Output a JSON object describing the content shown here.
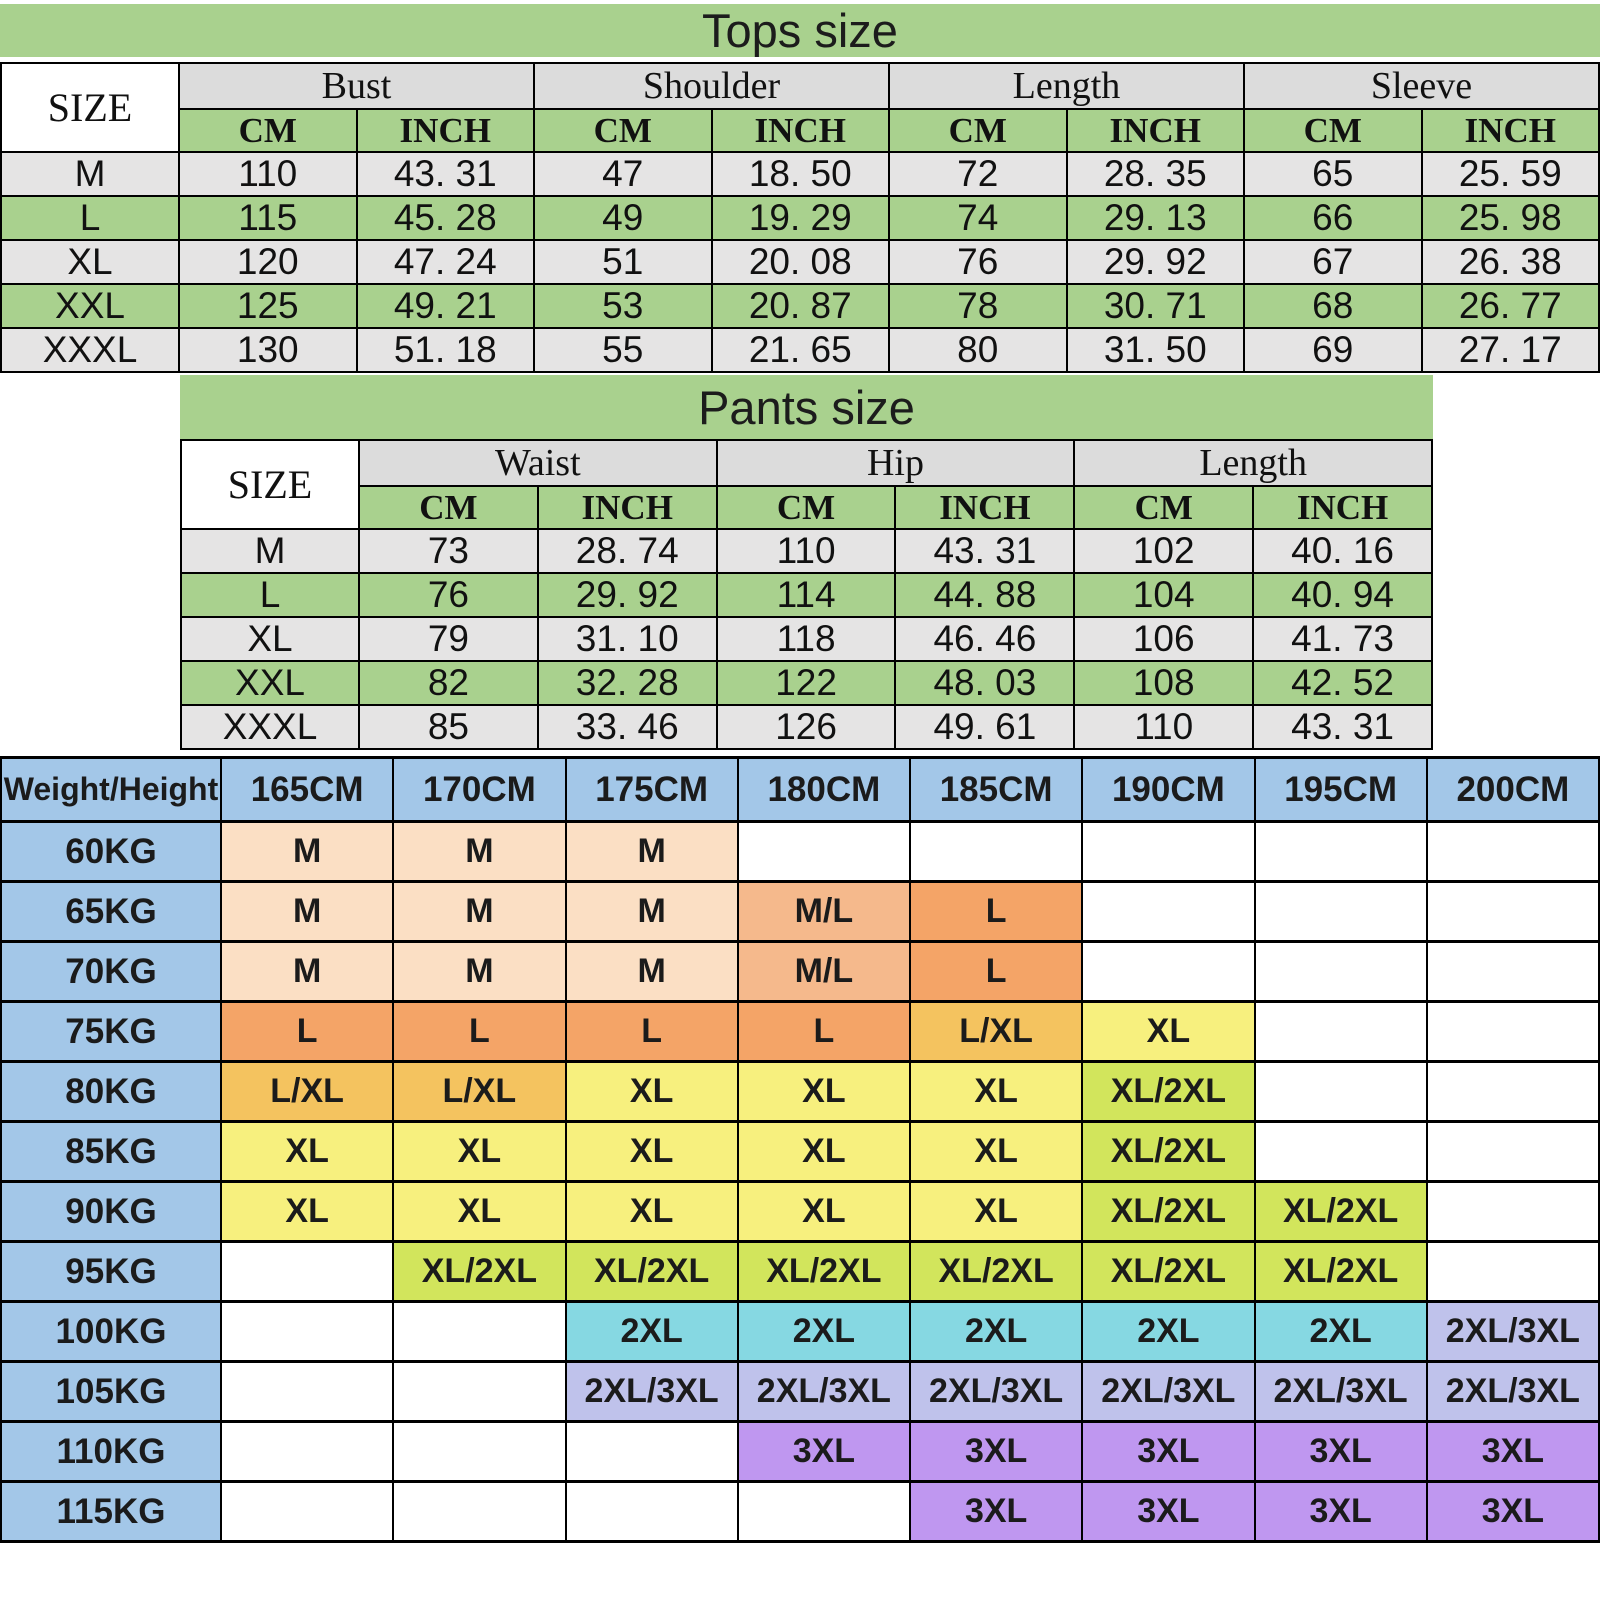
{
  "page": {
    "background": "#ffffff"
  },
  "colors": {
    "green": "#a9d18e",
    "header_gray": "#dcdcdc",
    "row_gray": "#e5e4e4",
    "white": "#ffffff",
    "blue": "#a3c7e8",
    "peach": "#fbdfc4",
    "ml_orange": "#f5b98c",
    "l_orange": "#f4a467",
    "lxl_amber": "#f4c35f",
    "xl_yellow": "#f7f07e",
    "xl2xl_chartreuse": "#d2e55c",
    "c2xl_cyan": "#86d8e2",
    "c2xl3xl_periwinkle": "#bfc2eb",
    "c3xl_purple": "#bf97f0",
    "border_black": "#000000"
  },
  "tops": {
    "title": "Tops size",
    "corner_label": "SIZE",
    "groups": [
      {
        "label": "Bust"
      },
      {
        "label": "Shoulder"
      },
      {
        "label": "Length"
      },
      {
        "label": "Sleeve"
      }
    ],
    "unit_labels": [
      "CM",
      "INCH"
    ],
    "rows": [
      {
        "size": "M",
        "tone": "row_gray",
        "values": [
          "110",
          "43. 31",
          "47",
          "18. 50",
          "72",
          "28. 35",
          "65",
          "25. 59"
        ]
      },
      {
        "size": "L",
        "tone": "green",
        "values": [
          "115",
          "45. 28",
          "49",
          "19. 29",
          "74",
          "29. 13",
          "66",
          "25. 98"
        ]
      },
      {
        "size": "XL",
        "tone": "row_gray",
        "values": [
          "120",
          "47. 24",
          "51",
          "20. 08",
          "76",
          "29. 92",
          "67",
          "26. 38"
        ]
      },
      {
        "size": "XXL",
        "tone": "green",
        "values": [
          "125",
          "49. 21",
          "53",
          "20. 87",
          "78",
          "30. 71",
          "68",
          "26. 77"
        ]
      },
      {
        "size": "XXXL",
        "tone": "row_gray",
        "values": [
          "130",
          "51. 18",
          "55",
          "21. 65",
          "80",
          "31. 50",
          "69",
          "27. 17"
        ]
      }
    ]
  },
  "pants": {
    "title": "Pants size",
    "corner_label": "SIZE",
    "groups": [
      {
        "label": "Waist"
      },
      {
        "label": "Hip"
      },
      {
        "label": "Length"
      }
    ],
    "unit_labels": [
      "CM",
      "INCH"
    ],
    "rows": [
      {
        "size": "M",
        "tone": "row_gray",
        "values": [
          "73",
          "28. 74",
          "110",
          "43. 31",
          "102",
          "40. 16"
        ]
      },
      {
        "size": "L",
        "tone": "green",
        "values": [
          "76",
          "29. 92",
          "114",
          "44. 88",
          "104",
          "40. 94"
        ]
      },
      {
        "size": "XL",
        "tone": "row_gray",
        "values": [
          "79",
          "31. 10",
          "118",
          "46. 46",
          "106",
          "41. 73"
        ]
      },
      {
        "size": "XXL",
        "tone": "green",
        "values": [
          "82",
          "32. 28",
          "122",
          "48. 03",
          "108",
          "42. 52"
        ]
      },
      {
        "size": "XXXL",
        "tone": "row_gray",
        "values": [
          "85",
          "33. 46",
          "126",
          "49. 61",
          "110",
          "43. 31"
        ]
      }
    ]
  },
  "matrix": {
    "corner_label": "Weight/Height",
    "height_headers": [
      "165CM",
      "170CM",
      "175CM",
      "180CM",
      "185CM",
      "190CM",
      "195CM",
      "200CM"
    ],
    "rows": [
      {
        "weight": "60KG",
        "cells": [
          {
            "v": "M",
            "c": "peach"
          },
          {
            "v": "M",
            "c": "peach"
          },
          {
            "v": "M",
            "c": "peach"
          },
          {
            "v": "",
            "c": "white"
          },
          {
            "v": "",
            "c": "white"
          },
          {
            "v": "",
            "c": "white"
          },
          {
            "v": "",
            "c": "white"
          },
          {
            "v": "",
            "c": "white"
          }
        ]
      },
      {
        "weight": "65KG",
        "cells": [
          {
            "v": "M",
            "c": "peach"
          },
          {
            "v": "M",
            "c": "peach"
          },
          {
            "v": "M",
            "c": "peach"
          },
          {
            "v": "M/L",
            "c": "ml_orange"
          },
          {
            "v": "L",
            "c": "l_orange"
          },
          {
            "v": "",
            "c": "white"
          },
          {
            "v": "",
            "c": "white"
          },
          {
            "v": "",
            "c": "white"
          }
        ]
      },
      {
        "weight": "70KG",
        "cells": [
          {
            "v": "M",
            "c": "peach"
          },
          {
            "v": "M",
            "c": "peach"
          },
          {
            "v": "M",
            "c": "peach"
          },
          {
            "v": "M/L",
            "c": "ml_orange"
          },
          {
            "v": "L",
            "c": "l_orange"
          },
          {
            "v": "",
            "c": "white"
          },
          {
            "v": "",
            "c": "white"
          },
          {
            "v": "",
            "c": "white"
          }
        ]
      },
      {
        "weight": "75KG",
        "cells": [
          {
            "v": "L",
            "c": "l_orange"
          },
          {
            "v": "L",
            "c": "l_orange"
          },
          {
            "v": "L",
            "c": "l_orange"
          },
          {
            "v": "L",
            "c": "l_orange"
          },
          {
            "v": "L/XL",
            "c": "lxl_amber"
          },
          {
            "v": "XL",
            "c": "xl_yellow"
          },
          {
            "v": "",
            "c": "white"
          },
          {
            "v": "",
            "c": "white"
          }
        ]
      },
      {
        "weight": "80KG",
        "cells": [
          {
            "v": "L/XL",
            "c": "lxl_amber"
          },
          {
            "v": "L/XL",
            "c": "lxl_amber"
          },
          {
            "v": "XL",
            "c": "xl_yellow"
          },
          {
            "v": "XL",
            "c": "xl_yellow"
          },
          {
            "v": "XL",
            "c": "xl_yellow"
          },
          {
            "v": "XL/2XL",
            "c": "xl2xl_chartreuse"
          },
          {
            "v": "",
            "c": "white"
          },
          {
            "v": "",
            "c": "white"
          }
        ]
      },
      {
        "weight": "85KG",
        "cells": [
          {
            "v": "XL",
            "c": "xl_yellow"
          },
          {
            "v": "XL",
            "c": "xl_yellow"
          },
          {
            "v": "XL",
            "c": "xl_yellow"
          },
          {
            "v": "XL",
            "c": "xl_yellow"
          },
          {
            "v": "XL",
            "c": "xl_yellow"
          },
          {
            "v": "XL/2XL",
            "c": "xl2xl_chartreuse"
          },
          {
            "v": "",
            "c": "white"
          },
          {
            "v": "",
            "c": "white"
          }
        ]
      },
      {
        "weight": "90KG",
        "cells": [
          {
            "v": "XL",
            "c": "xl_yellow"
          },
          {
            "v": "XL",
            "c": "xl_yellow"
          },
          {
            "v": "XL",
            "c": "xl_yellow"
          },
          {
            "v": "XL",
            "c": "xl_yellow"
          },
          {
            "v": "XL",
            "c": "xl_yellow"
          },
          {
            "v": "XL/2XL",
            "c": "xl2xl_chartreuse"
          },
          {
            "v": "XL/2XL",
            "c": "xl2xl_chartreuse"
          },
          {
            "v": "",
            "c": "white"
          }
        ]
      },
      {
        "weight": "95KG",
        "cells": [
          {
            "v": "",
            "c": "white"
          },
          {
            "v": "XL/2XL",
            "c": "xl2xl_chartreuse"
          },
          {
            "v": "XL/2XL",
            "c": "xl2xl_chartreuse"
          },
          {
            "v": "XL/2XL",
            "c": "xl2xl_chartreuse"
          },
          {
            "v": "XL/2XL",
            "c": "xl2xl_chartreuse"
          },
          {
            "v": "XL/2XL",
            "c": "xl2xl_chartreuse"
          },
          {
            "v": "XL/2XL",
            "c": "xl2xl_chartreuse"
          },
          {
            "v": "",
            "c": "white"
          }
        ]
      },
      {
        "weight": "100KG",
        "cells": [
          {
            "v": "",
            "c": "white"
          },
          {
            "v": "",
            "c": "white"
          },
          {
            "v": "2XL",
            "c": "c2xl_cyan"
          },
          {
            "v": "2XL",
            "c": "c2xl_cyan"
          },
          {
            "v": "2XL",
            "c": "c2xl_cyan"
          },
          {
            "v": "2XL",
            "c": "c2xl_cyan"
          },
          {
            "v": "2XL",
            "c": "c2xl_cyan"
          },
          {
            "v": "2XL/3XL",
            "c": "c2xl3xl_periwinkle"
          }
        ]
      },
      {
        "weight": "105KG",
        "cells": [
          {
            "v": "",
            "c": "white"
          },
          {
            "v": "",
            "c": "white"
          },
          {
            "v": "2XL/3XL",
            "c": "c2xl3xl_periwinkle"
          },
          {
            "v": "2XL/3XL",
            "c": "c2xl3xl_periwinkle"
          },
          {
            "v": "2XL/3XL",
            "c": "c2xl3xl_periwinkle"
          },
          {
            "v": "2XL/3XL",
            "c": "c2xl3xl_periwinkle"
          },
          {
            "v": "2XL/3XL",
            "c": "c2xl3xl_periwinkle"
          },
          {
            "v": "2XL/3XL",
            "c": "c2xl3xl_periwinkle"
          }
        ]
      },
      {
        "weight": "110KG",
        "cells": [
          {
            "v": "",
            "c": "white"
          },
          {
            "v": "",
            "c": "white"
          },
          {
            "v": "",
            "c": "white"
          },
          {
            "v": "3XL",
            "c": "c3xl_purple"
          },
          {
            "v": "3XL",
            "c": "c3xl_purple"
          },
          {
            "v": "3XL",
            "c": "c3xl_purple"
          },
          {
            "v": "3XL",
            "c": "c3xl_purple"
          },
          {
            "v": "3XL",
            "c": "c3xl_purple"
          }
        ]
      },
      {
        "weight": "115KG",
        "cells": [
          {
            "v": "",
            "c": "white"
          },
          {
            "v": "",
            "c": "white"
          },
          {
            "v": "",
            "c": "white"
          },
          {
            "v": "",
            "c": "white"
          },
          {
            "v": "3XL",
            "c": "c3xl_purple"
          },
          {
            "v": "3XL",
            "c": "c3xl_purple"
          },
          {
            "v": "3XL",
            "c": "c3xl_purple"
          },
          {
            "v": "3XL",
            "c": "c3xl_purple"
          }
        ]
      }
    ]
  },
  "chart_data": [
    {
      "type": "table",
      "title": "Tops size",
      "columns": [
        "SIZE",
        "Bust CM",
        "Bust INCH",
        "Shoulder CM",
        "Shoulder INCH",
        "Length CM",
        "Length INCH",
        "Sleeve CM",
        "Sleeve INCH"
      ],
      "rows": [
        [
          "M",
          110,
          43.31,
          47,
          18.5,
          72,
          28.35,
          65,
          25.59
        ],
        [
          "L",
          115,
          45.28,
          49,
          19.29,
          74,
          29.13,
          66,
          25.98
        ],
        [
          "XL",
          120,
          47.24,
          51,
          20.08,
          76,
          29.92,
          67,
          26.38
        ],
        [
          "XXL",
          125,
          49.21,
          53,
          20.87,
          78,
          30.71,
          68,
          26.77
        ],
        [
          "XXXL",
          130,
          51.18,
          55,
          21.65,
          80,
          31.5,
          69,
          27.17
        ]
      ]
    },
    {
      "type": "table",
      "title": "Pants size",
      "columns": [
        "SIZE",
        "Waist CM",
        "Waist INCH",
        "Hip CM",
        "Hip INCH",
        "Length CM",
        "Length INCH"
      ],
      "rows": [
        [
          "M",
          73,
          28.74,
          110,
          43.31,
          102,
          40.16
        ],
        [
          "L",
          76,
          29.92,
          114,
          44.88,
          104,
          40.94
        ],
        [
          "XL",
          79,
          31.1,
          118,
          46.46,
          106,
          41.73
        ],
        [
          "XXL",
          82,
          32.28,
          122,
          48.03,
          108,
          42.52
        ],
        [
          "XXXL",
          85,
          33.46,
          126,
          49.61,
          110,
          43.31
        ]
      ]
    },
    {
      "type": "table",
      "title": "Weight/Height size recommendation matrix",
      "columns": [
        "Weight/Height",
        "165CM",
        "170CM",
        "175CM",
        "180CM",
        "185CM",
        "190CM",
        "195CM",
        "200CM"
      ],
      "rows": [
        [
          "60KG",
          "M",
          "M",
          "M",
          "",
          "",
          "",
          "",
          ""
        ],
        [
          "65KG",
          "M",
          "M",
          "M",
          "M/L",
          "L",
          "",
          "",
          ""
        ],
        [
          "70KG",
          "M",
          "M",
          "M",
          "M/L",
          "L",
          "",
          "",
          ""
        ],
        [
          "75KG",
          "L",
          "L",
          "L",
          "L",
          "L/XL",
          "XL",
          "",
          ""
        ],
        [
          "80KG",
          "L/XL",
          "L/XL",
          "XL",
          "XL",
          "XL",
          "XL/2XL",
          "",
          ""
        ],
        [
          "85KG",
          "XL",
          "XL",
          "XL",
          "XL",
          "XL",
          "XL/2XL",
          "",
          ""
        ],
        [
          "90KG",
          "XL",
          "XL",
          "XL",
          "XL",
          "XL",
          "XL/2XL",
          "XL/2XL",
          ""
        ],
        [
          "95KG",
          "",
          "XL/2XL",
          "XL/2XL",
          "XL/2XL",
          "XL/2XL",
          "XL/2XL",
          "XL/2XL",
          ""
        ],
        [
          "100KG",
          "",
          "",
          "2XL",
          "2XL",
          "2XL",
          "2XL",
          "2XL",
          "2XL/3XL"
        ],
        [
          "105KG",
          "",
          "",
          "2XL/3XL",
          "2XL/3XL",
          "2XL/3XL",
          "2XL/3XL",
          "2XL/3XL",
          "2XL/3XL"
        ],
        [
          "110KG",
          "",
          "",
          "",
          "3XL",
          "3XL",
          "3XL",
          "3XL",
          "3XL"
        ],
        [
          "115KG",
          "",
          "",
          "",
          "",
          "3XL",
          "3XL",
          "3XL",
          "3XL"
        ]
      ]
    }
  ]
}
